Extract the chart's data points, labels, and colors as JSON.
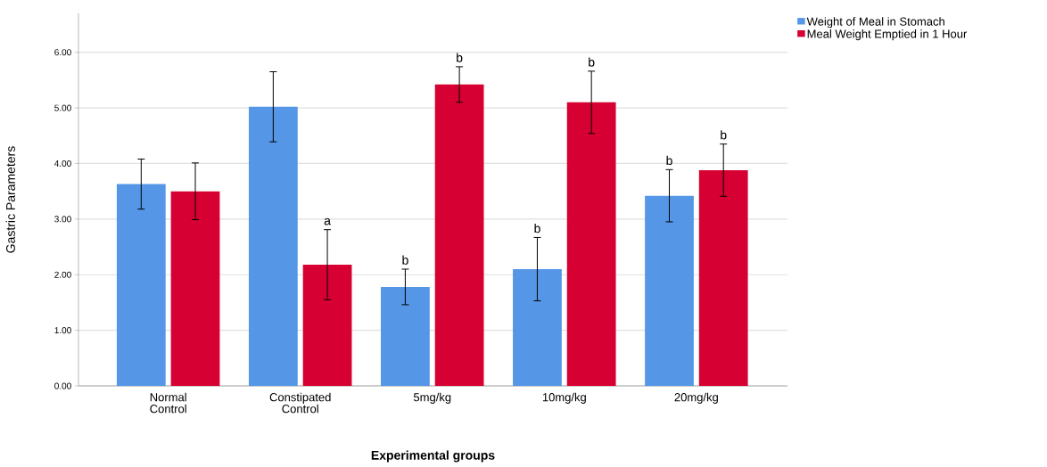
{
  "chart_data": {
    "type": "bar",
    "xlabel": "Experimental groups",
    "ylabel": "Gastric Parameters",
    "categories": [
      "Normal Control",
      "Constipated Control",
      "5mg/kg",
      "10mg/kg",
      "20mg/kg"
    ],
    "series": [
      {
        "name": "Weight of Meal in Stomach",
        "color": "#5596e6",
        "values": [
          3.63,
          5.02,
          1.78,
          2.1,
          3.42
        ],
        "errors": [
          0.45,
          0.63,
          0.32,
          0.57,
          0.47
        ],
        "value_labels": [
          null,
          null,
          "b",
          "b",
          "b"
        ]
      },
      {
        "name": "Meal Weight Emptied in 1 Hour",
        "color": "#d60032",
        "values": [
          3.5,
          2.18,
          5.42,
          5.1,
          3.88
        ],
        "errors": [
          0.51,
          0.63,
          0.32,
          0.56,
          0.47
        ],
        "value_labels": [
          null,
          "a",
          "b",
          "b",
          "b"
        ]
      }
    ],
    "ylim": [
      0,
      6.7
    ],
    "yticks": [
      {
        "value": 0,
        "label": "0.00"
      },
      {
        "value": 1,
        "label": "1.00"
      },
      {
        "value": 2,
        "label": "2.00"
      },
      {
        "value": 3,
        "label": "3.00"
      },
      {
        "value": 4,
        "label": "4.00"
      },
      {
        "value": 5,
        "label": "5.00"
      },
      {
        "value": 6,
        "label": "6.00"
      }
    ],
    "grid": "y",
    "legend": "top right"
  }
}
